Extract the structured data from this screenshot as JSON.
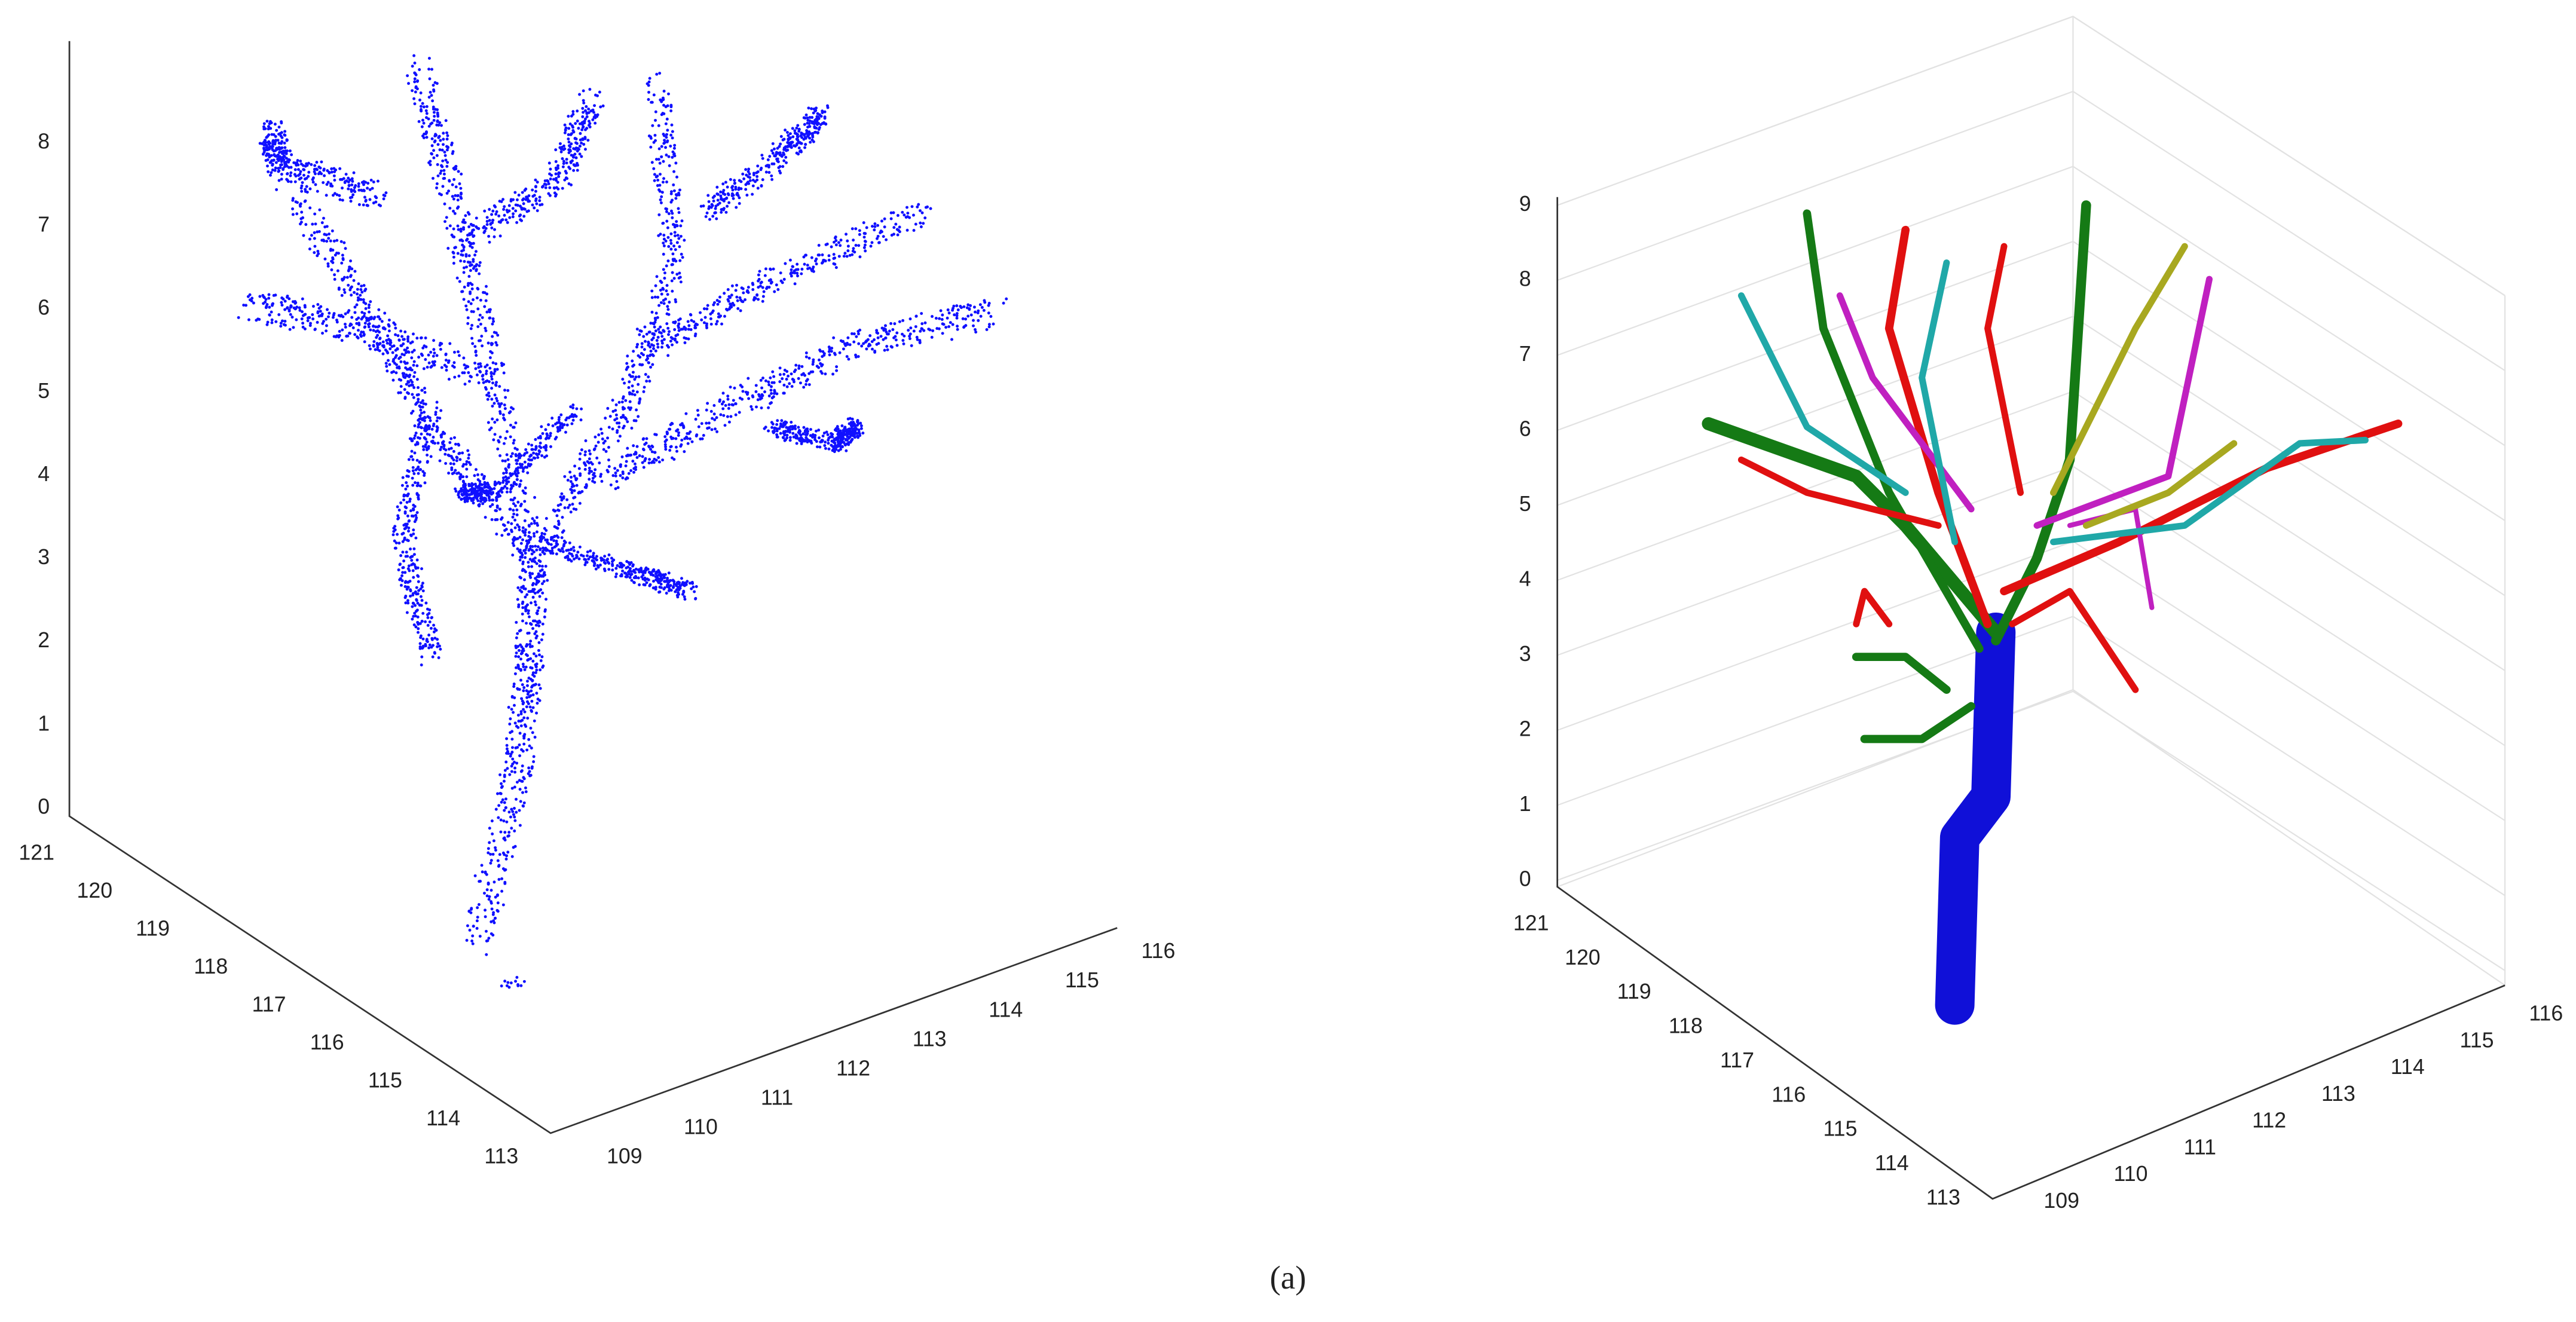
{
  "figure": {
    "panels": [
      {
        "z_ticks": [
          "0",
          "1",
          "2",
          "3",
          "4",
          "5",
          "6",
          "7",
          "8"
        ],
        "x_ticks": [
          "121",
          "120",
          "119",
          "118",
          "117",
          "116",
          "115",
          "114",
          "113"
        ],
        "y_ticks": [
          "109",
          "110",
          "111",
          "112",
          "113",
          "114",
          "115",
          "116"
        ]
      },
      {
        "z_ticks": [
          "0",
          "1",
          "2",
          "3",
          "4",
          "5",
          "6",
          "7",
          "8",
          "9"
        ],
        "x_ticks": [
          "121",
          "120",
          "119",
          "118",
          "117",
          "116",
          "115",
          "114",
          "113"
        ],
        "y_ticks": [
          "109",
          "110",
          "111",
          "112",
          "113",
          "114",
          "115",
          "116"
        ]
      }
    ],
    "caption": "(a)"
  }
}
